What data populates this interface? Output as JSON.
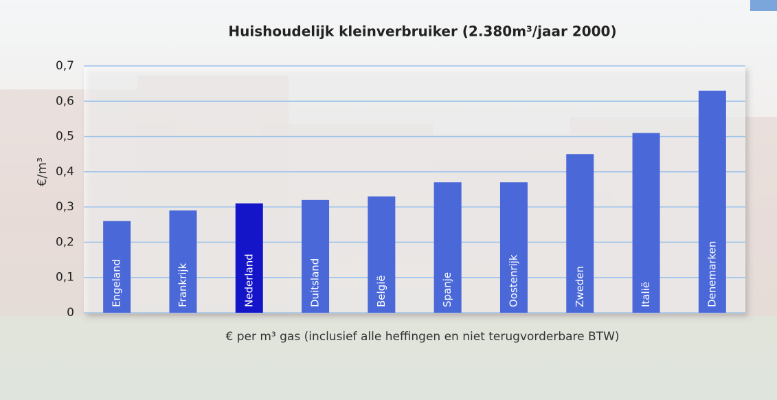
{
  "chart_data": {
    "type": "bar",
    "title": "Huishoudelijk kleinverbruiker (2.380m³/jaar 2000)",
    "y_label": "€/m³",
    "x_label": "€ per m³ gas (inclusief alle heffingen en niet terugvorderbare BTW)",
    "categories": [
      "Engeland",
      "Frankrijk",
      "Nederland",
      "Duitsland",
      "België",
      "Spanje",
      "Oostenrijk",
      "Zweden",
      "Italië",
      "Denemarken"
    ],
    "values": [
      0.26,
      0.29,
      0.31,
      0.32,
      0.33,
      0.37,
      0.37,
      0.45,
      0.51,
      0.63
    ],
    "colors": [
      "#4a68d8",
      "#4a68d8",
      "#1414c8",
      "#4a68d8",
      "#4a68d8",
      "#4a68d8",
      "#4a68d8",
      "#4a68d8",
      "#4a68d8",
      "#4a68d8"
    ],
    "ylim": [
      0,
      0.7
    ],
    "yticks": [
      0,
      {
        "value": 0.1,
        "label": "0,1"
      },
      {
        "value": 0.2,
        "label": "0,2"
      },
      {
        "value": 0.3,
        "label": "0,3"
      },
      {
        "value": 0.4,
        "label": "0,4"
      },
      {
        "value": 0.5,
        "label": "0,5"
      },
      {
        "value": 0.6,
        "label": "0,6"
      },
      {
        "value": 0.7,
        "label": "0,7"
      }
    ],
    "grid": true
  }
}
